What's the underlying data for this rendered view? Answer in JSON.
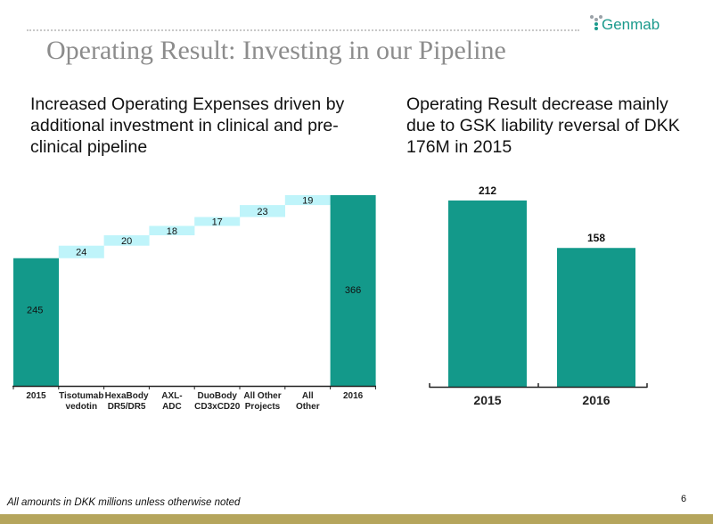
{
  "header": {
    "logo_text": "Genmab",
    "title": "Operating Result: Investing in our Pipeline"
  },
  "subheads": {
    "left": "Increased Operating Expenses driven by additional investment in clinical and pre-clinical pipeline",
    "right": "Operating Result decrease mainly due to GSK liability reversal of DKK 176M in 2015"
  },
  "colors": {
    "total_bar": "#13998a",
    "increment_bar": "#bff4fa",
    "title_gray": "#8c8c8c",
    "footer_bar": "#b5a55c"
  },
  "chart_data": [
    {
      "type": "bar",
      "subtype": "waterfall",
      "categories": [
        "2015",
        "Tisotumab vedotin",
        "HexaBody DR5/DR5",
        "AXL-ADC",
        "DuoBody CD3xCD20",
        "All Other Projects",
        "All Other",
        "2016"
      ],
      "category_lines": [
        [
          "2015"
        ],
        [
          "Tisotumab",
          "vedotin"
        ],
        [
          "HexaBody",
          "DR5/DR5"
        ],
        [
          "AXL-",
          "ADC"
        ],
        [
          "DuoBody",
          "CD3xCD20"
        ],
        [
          "All Other",
          "Projects"
        ],
        [
          "All",
          "Other"
        ],
        [
          "2016"
        ]
      ],
      "values": [
        245,
        24,
        20,
        18,
        17,
        23,
        19,
        366
      ],
      "labels": [
        "245",
        "24",
        "20",
        "18",
        "17",
        "23",
        "19",
        "366"
      ],
      "kinds": [
        "total",
        "increase",
        "increase",
        "increase",
        "increase",
        "increase",
        "increase",
        "total"
      ],
      "ylim": [
        0,
        366
      ]
    },
    {
      "type": "bar",
      "categories": [
        "2015",
        "2016"
      ],
      "values": [
        212,
        158
      ],
      "labels": [
        "212",
        "158"
      ],
      "ylim": [
        0,
        212
      ]
    }
  ],
  "footer": {
    "note": "All amounts in DKK millions unless otherwise noted",
    "page_number": "6"
  }
}
